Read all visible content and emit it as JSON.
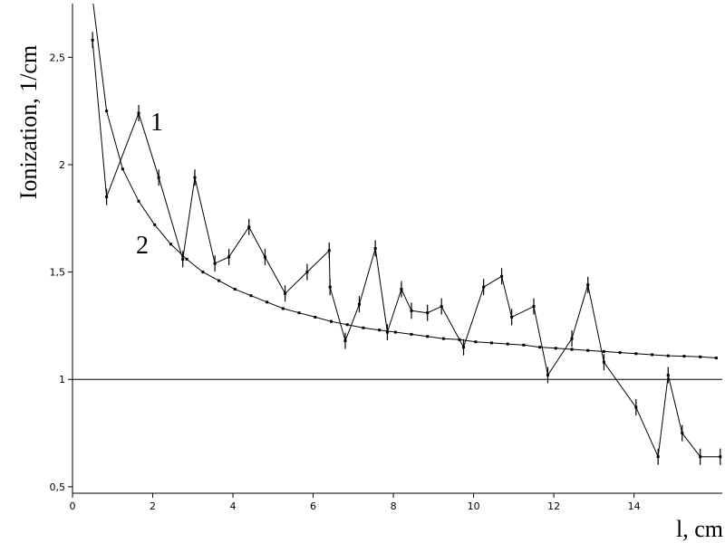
{
  "chart_data": {
    "type": "line",
    "ylabel": "Ionization, 1/cm",
    "xlabel": "l, cm",
    "xlim": [
      0,
      16.2
    ],
    "ylim": [
      0.47,
      2.75
    ],
    "x_ticks": [
      0,
      2,
      4,
      6,
      8,
      10,
      12,
      14
    ],
    "x_tick_labels": [
      "0",
      "2",
      "4",
      "6",
      "8",
      "10",
      "12",
      "14"
    ],
    "y_ticks": [
      0.5,
      1,
      1.5,
      2,
      2.5
    ],
    "y_tick_labels": [
      "0,5",
      "1",
      "1,5",
      "2",
      "2,5"
    ],
    "reference_line_y": 1,
    "grid": false,
    "series": [
      {
        "name": "1",
        "color": "#000000",
        "error_bars": true,
        "x": [
          0.5,
          0.85,
          1.65,
          2.15,
          2.75,
          3.05,
          3.55,
          3.9,
          4.4,
          4.8,
          5.3,
          5.85,
          6.4,
          6.42,
          6.8,
          7.15,
          7.55,
          7.85,
          8.2,
          8.45,
          8.85,
          9.2,
          9.75,
          10.25,
          10.7,
          10.95,
          11.5,
          11.85,
          12.45,
          12.85,
          13.25,
          14.05,
          14.6,
          14.85,
          15.2,
          15.65,
          16.15
        ],
        "y": [
          2.58,
          1.85,
          2.24,
          1.94,
          1.56,
          1.94,
          1.54,
          1.57,
          1.71,
          1.57,
          1.4,
          1.5,
          1.6,
          1.43,
          1.18,
          1.35,
          1.61,
          1.22,
          1.42,
          1.32,
          1.31,
          1.34,
          1.15,
          1.43,
          1.48,
          1.29,
          1.34,
          1.02,
          1.19,
          1.44,
          1.08,
          0.87,
          0.64,
          1.02,
          0.75,
          0.64,
          0.64
        ]
      },
      {
        "name": "2",
        "color": "#000000",
        "markers": true,
        "x": [
          0.45,
          0.85,
          1.25,
          1.65,
          2.05,
          2.45,
          2.85,
          3.25,
          3.65,
          4.05,
          4.45,
          4.85,
          5.25,
          5.65,
          6.05,
          6.45,
          6.85,
          7.25,
          7.65,
          8.05,
          8.45,
          8.85,
          9.25,
          9.65,
          10.05,
          10.45,
          10.85,
          11.25,
          11.65,
          12.05,
          12.45,
          12.85,
          13.25,
          13.65,
          14.05,
          14.45,
          14.85,
          15.25,
          15.65,
          16.05
        ],
        "y": [
          2.85,
          2.25,
          1.98,
          1.83,
          1.72,
          1.63,
          1.56,
          1.5,
          1.46,
          1.42,
          1.39,
          1.36,
          1.33,
          1.31,
          1.29,
          1.27,
          1.255,
          1.24,
          1.23,
          1.22,
          1.21,
          1.2,
          1.19,
          1.185,
          1.175,
          1.17,
          1.165,
          1.16,
          1.15,
          1.145,
          1.14,
          1.135,
          1.13,
          1.125,
          1.12,
          1.115,
          1.11,
          1.108,
          1.105,
          1.1
        ]
      }
    ]
  }
}
